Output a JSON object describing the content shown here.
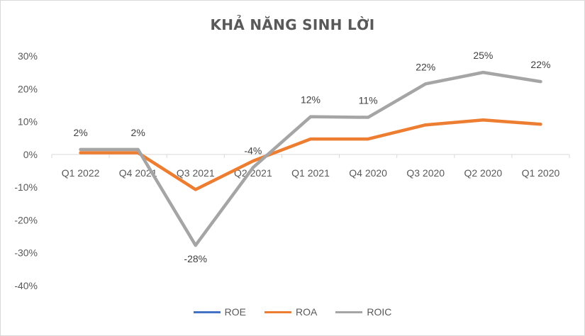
{
  "chart_data": {
    "type": "line",
    "title": "KHẢ NĂNG SINH LỜI",
    "xlabel": "",
    "ylabel": "",
    "categories": [
      "Q1 2022",
      "Q4 2021",
      "Q3 2021",
      "Q2 2021",
      "Q1 2021",
      "Q4 2020",
      "Q3 2020",
      "Q2 2020",
      "Q1 2020"
    ],
    "ylim": [
      -0.4,
      0.3
    ],
    "y_ticks": [
      0.3,
      0.2,
      0.1,
      0,
      -0.1,
      -0.2,
      -0.3,
      -0.4
    ],
    "y_tick_labels": [
      "30%",
      "20%",
      "10%",
      "0%",
      "-10%",
      "-20%",
      "-30%",
      "-40%"
    ],
    "grid": false,
    "legend_position": "bottom",
    "series": [
      {
        "name": "ROE",
        "color": "#4472c4",
        "values": [
          null,
          null,
          null,
          null,
          null,
          null,
          null,
          null,
          null
        ]
      },
      {
        "name": "ROA",
        "color": "#ed7d31",
        "values": [
          0.005,
          0.005,
          -0.107,
          -0.02,
          0.047,
          0.047,
          0.09,
          0.105,
          0.092
        ]
      },
      {
        "name": "ROIC",
        "color": "#a5a5a5",
        "values": [
          0.015,
          0.015,
          -0.277,
          -0.04,
          0.115,
          0.113,
          0.215,
          0.25,
          0.222
        ],
        "data_labels": [
          "2%",
          "2%",
          "-28%",
          "-4%",
          "12%",
          "11%",
          "22%",
          "25%",
          "22%"
        ]
      }
    ]
  }
}
